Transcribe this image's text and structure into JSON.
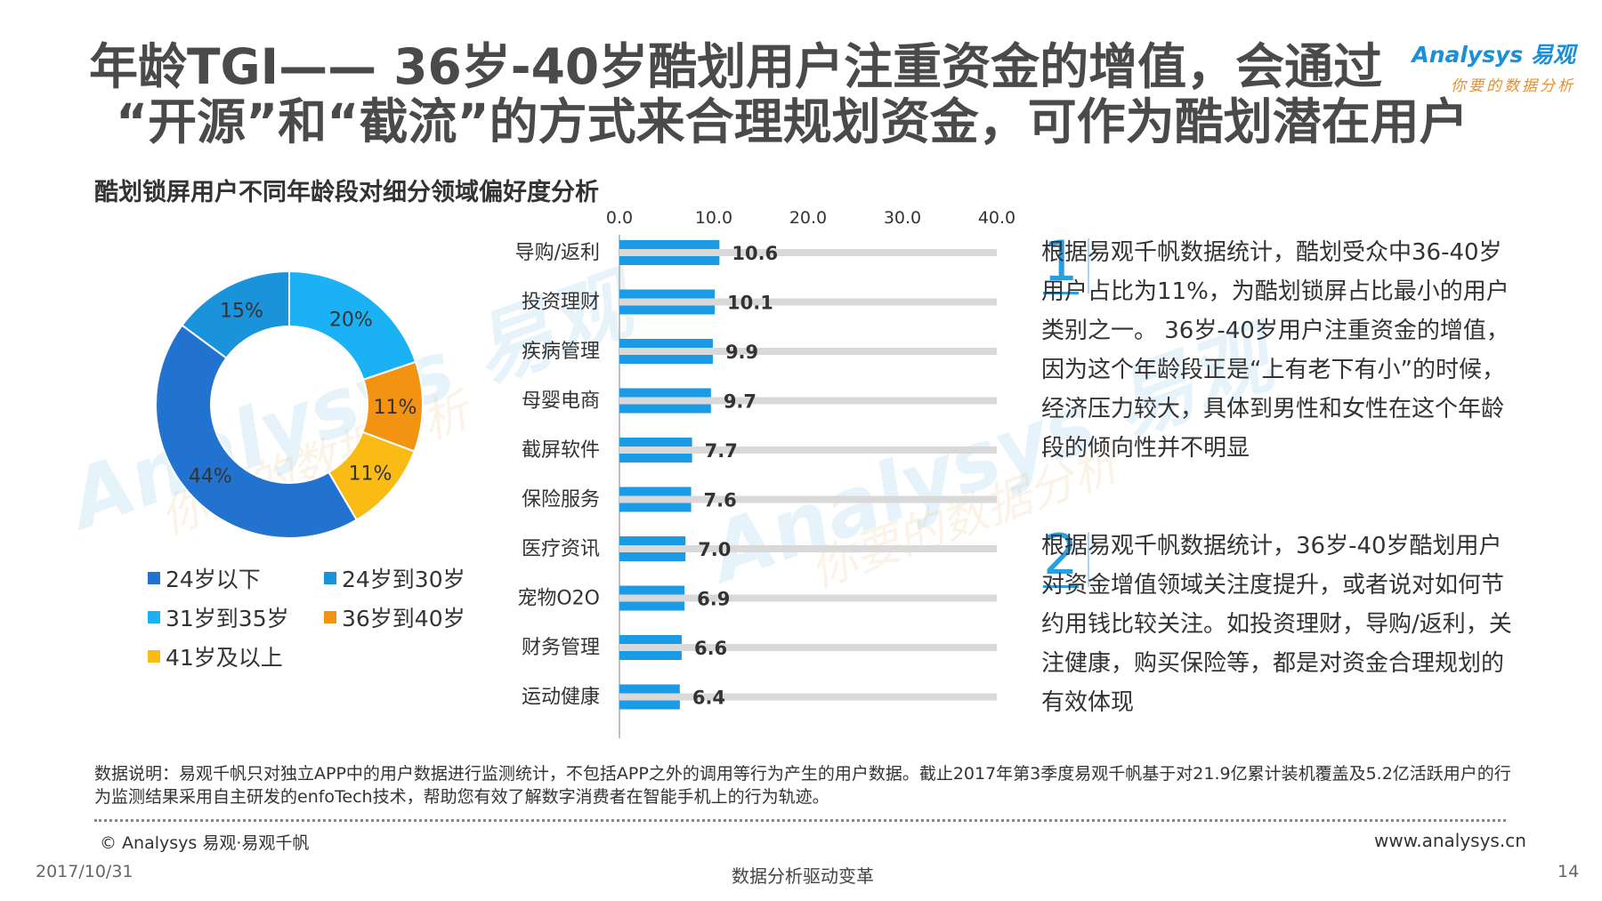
{
  "title": {
    "line1": "年龄TGI—— 36岁-40岁酷划用户注重资金的增值，会通过",
    "line2": "“开源”和“截流”的方式来合理规划资金，可作为酷划潜在用户"
  },
  "logo": {
    "brand": "Analysys 易观",
    "slogan": "你要的数据分析"
  },
  "subtitle": "酷划锁屏用户不同年龄段对细分领域偏好度分析",
  "colors": {
    "c1": "#2273cf",
    "c2": "#1b93da",
    "c3": "#1ab2f5",
    "c4": "#f39312",
    "c5": "#fbbb15",
    "bar": "#1a9be6",
    "track": "#d9d9d9",
    "accent": "#2a9fe0"
  },
  "chart_data": [
    {
      "type": "pie",
      "title": "",
      "slices": [
        {
          "label": "24岁以下",
          "value": 44,
          "display": "44%"
        },
        {
          "label": "24岁到30岁",
          "value": 15,
          "display": "15%"
        },
        {
          "label": "31岁到35岁",
          "value": 20,
          "display": "20%"
        },
        {
          "label": "36岁到40岁",
          "value": 11,
          "display": "11%"
        },
        {
          "label": "41岁及以上",
          "value": 11,
          "display": "11%"
        }
      ],
      "legend_position": "bottom"
    },
    {
      "type": "bar",
      "orientation": "horizontal",
      "categories": [
        "导购/返利",
        "投资理财",
        "疾病管理",
        "母婴电商",
        "截屏软件",
        "保险服务",
        "医疗资讯",
        "宠物O2O",
        "财务管理",
        "运动健康"
      ],
      "values": [
        10.6,
        10.1,
        9.9,
        9.7,
        7.7,
        7.6,
        7.0,
        6.9,
        6.6,
        6.4
      ],
      "value_labels": [
        "10.6",
        "10.1",
        "9.9",
        "9.7",
        "7.7",
        "7.6",
        "7.0",
        "6.9",
        "6.6",
        "6.4"
      ],
      "xlim": [
        0,
        40
      ],
      "xticks": [
        "0.0",
        "10.0",
        "20.0",
        "30.0",
        "40.0"
      ],
      "axis_position": "top"
    }
  ],
  "points": [
    {
      "num": "1",
      "text": "根据易观千帆数据统计，酷划受众中36-40岁用户占比为11%，为酷划锁屏占比最小的用户类别之一。 36岁-40岁用户注重资金的增值，因为这个年龄段正是“上有老下有小”的时候，经济压力较大，具体到男性和女性在这个年龄段的倾向性并不明显"
    },
    {
      "num": "2",
      "text": "根据易观千帆数据统计，36岁-40岁酷划用户对资金增值领域关注度提升，或者说对如何节约用钱比较关注。如投资理财，导购/返利，关注健康，购买保险等，都是对资金合理规划的有效体现"
    }
  ],
  "note": "数据说明：易观千帆只对独立APP中的用户数据进行监测统计，不包括APP之外的调用等行为产生的用户数据。截止2017年第3季度易观千帆基于对21.9亿累计装机覆盖及5.2亿活跃用户的行为监测结果采用自主研发的enfoTech技术，帮助您有效了解数字消费者在智能手机上的行为轨迹。",
  "footer": {
    "copyright": "© Analysys 易观·易观千帆",
    "website": "www.analysys.cn",
    "date": "2017/10/31",
    "center": "数据分析驱动变革",
    "page": "14"
  },
  "watermark": {
    "brand": "Analysys 易观",
    "slogan": "你要的数据分析"
  }
}
